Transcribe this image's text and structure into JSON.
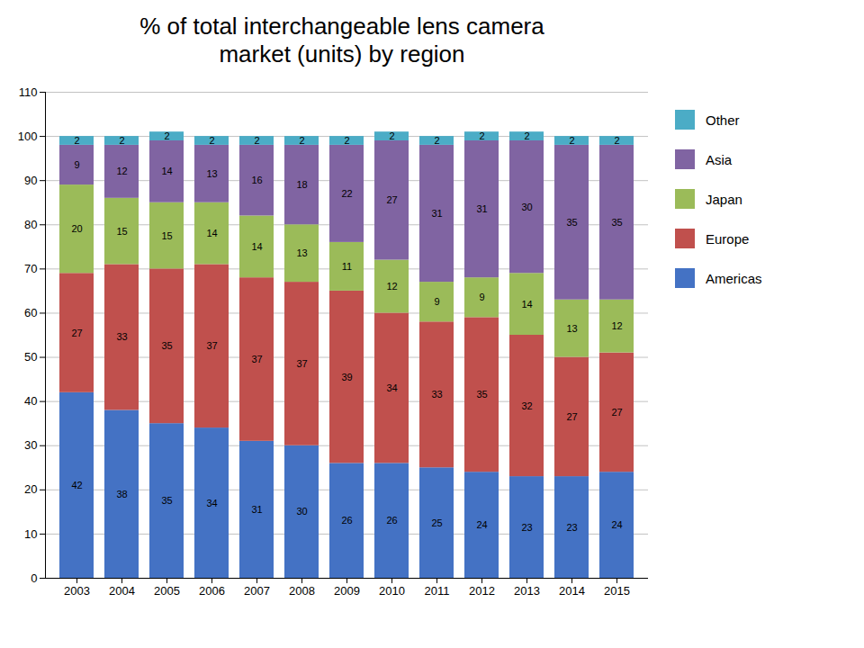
{
  "chart_data": {
    "type": "bar",
    "stacked": true,
    "title": "% of total interchangeable lens camera\nmarket (units) by region",
    "categories": [
      "2003",
      "2004",
      "2005",
      "2006",
      "2007",
      "2008",
      "2009",
      "2010",
      "2011",
      "2012",
      "2013",
      "2014",
      "2015"
    ],
    "series": [
      {
        "name": "Americas",
        "color": "#4472C4",
        "values": [
          42,
          38,
          35,
          34,
          31,
          30,
          26,
          26,
          25,
          24,
          23,
          23,
          24
        ]
      },
      {
        "name": "Europe",
        "color": "#C0504D",
        "values": [
          27,
          33,
          35,
          37,
          37,
          37,
          39,
          34,
          33,
          35,
          32,
          27,
          27
        ]
      },
      {
        "name": "Japan",
        "color": "#9BBB59",
        "values": [
          20,
          15,
          15,
          14,
          14,
          13,
          11,
          12,
          9,
          9,
          14,
          13,
          12
        ]
      },
      {
        "name": "Asia",
        "color": "#8064A2",
        "values": [
          9,
          12,
          14,
          13,
          16,
          18,
          22,
          27,
          31,
          31,
          30,
          35,
          35
        ]
      },
      {
        "name": "Other",
        "color": "#4BACC6",
        "values": [
          2,
          2,
          2,
          2,
          2,
          2,
          2,
          2,
          2,
          2,
          2,
          2,
          2
        ]
      }
    ],
    "ylim": [
      0,
      110
    ],
    "yticks": [
      0,
      10,
      20,
      30,
      40,
      50,
      60,
      70,
      80,
      90,
      100,
      110
    ],
    "grid": true,
    "legend": "right",
    "data_labels": true
  }
}
